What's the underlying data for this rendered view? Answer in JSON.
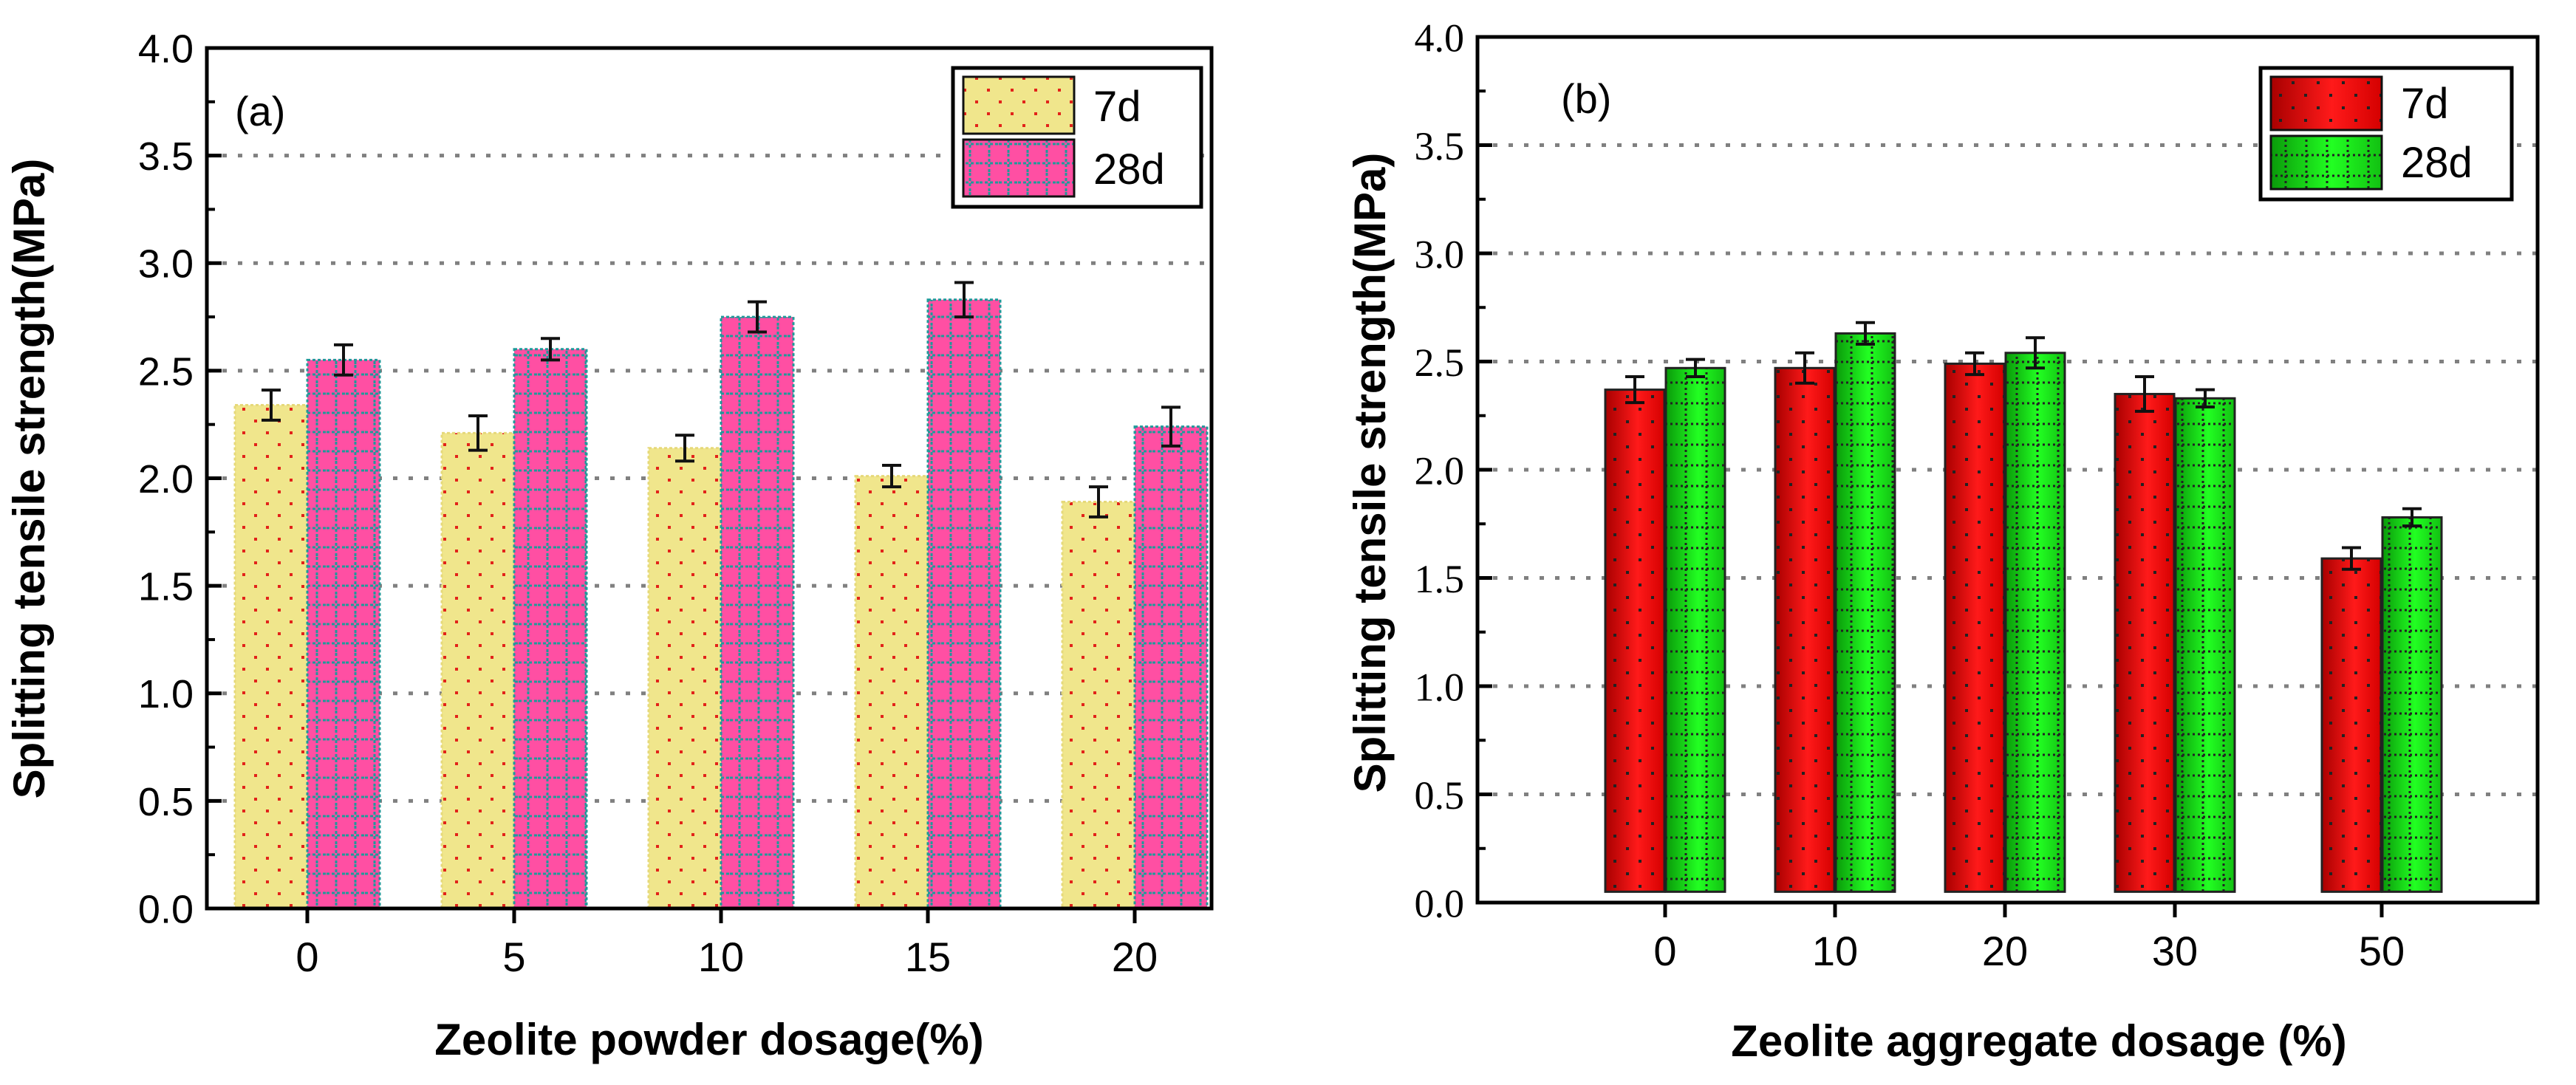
{
  "chart_data": [
    {
      "type": "bar",
      "panel_label": "(a)",
      "title": "",
      "xlabel": "Zeolite powder dosage(%)",
      "ylabel": "Splitting tensile strength(MPa)",
      "categories": [
        "0",
        "5",
        "10",
        "15",
        "20"
      ],
      "ylim": [
        0,
        4.0
      ],
      "yticks": [
        "0.0",
        "0.5",
        "1.0",
        "1.5",
        "2.0",
        "2.5",
        "3.0",
        "3.5",
        "4.0"
      ],
      "grid": "horizontal dotted",
      "legend_position": "top-right",
      "series": [
        {
          "name": "7d",
          "color": "#f0e68c",
          "pattern_color": "#e2231a",
          "values": [
            2.34,
            2.21,
            2.14,
            2.01,
            1.89
          ],
          "errors": [
            0.07,
            0.08,
            0.06,
            0.05,
            0.07
          ]
        },
        {
          "name": "28d",
          "color": "#ff4fa3",
          "pattern_color": "#1f9a9a",
          "values": [
            2.55,
            2.6,
            2.75,
            2.83,
            2.24
          ],
          "errors": [
            0.07,
            0.05,
            0.07,
            0.08,
            0.09
          ]
        }
      ]
    },
    {
      "type": "bar",
      "panel_label": "(b)",
      "title": "",
      "xlabel": "Zeolite aggregate dosage (%)",
      "ylabel": "Splitting tensile strength(MPa)",
      "categories": [
        "0",
        "10",
        "20",
        "30",
        "50"
      ],
      "ylim": [
        0,
        4.0
      ],
      "yticks": [
        "0.0",
        "0.5",
        "1.0",
        "1.5",
        "2.0",
        "2.5",
        "3.0",
        "3.5",
        "4.0"
      ],
      "grid": "horizontal dotted",
      "legend_position": "top-right",
      "series": [
        {
          "name": "7d",
          "color": "#ee1111",
          "pattern_color": "#222222",
          "values": [
            2.37,
            2.47,
            2.49,
            2.35,
            1.59
          ],
          "errors": [
            0.06,
            0.07,
            0.05,
            0.08,
            0.05
          ]
        },
        {
          "name": "28d",
          "color": "#11ee11",
          "pattern_color": "#222222",
          "values": [
            2.47,
            2.63,
            2.54,
            2.33,
            1.78
          ],
          "errors": [
            0.04,
            0.05,
            0.07,
            0.04,
            0.04
          ]
        }
      ]
    }
  ]
}
